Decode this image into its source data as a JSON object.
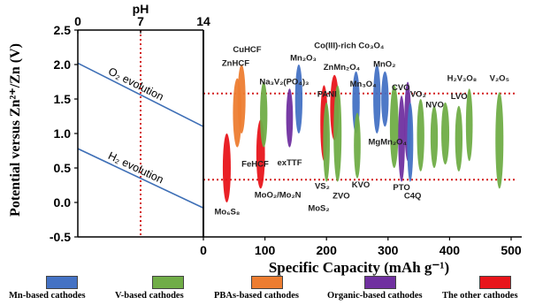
{
  "chart_data": {
    "type": "scatter",
    "title": "",
    "ylabel": "Potential versus Zn²⁺/Zn  (V)",
    "xlabel": "Specific Capacity (mAh g⁻¹)",
    "top_axis_label": "pH",
    "ylim": [
      -0.5,
      2.5
    ],
    "yticks": [
      "2.5",
      "2.0",
      "1.5",
      "1.0",
      "0.5",
      "0.0",
      "-0.5"
    ],
    "ph_range": [
      0,
      14
    ],
    "ph_ticks": [
      "0",
      "7",
      "14"
    ],
    "ph_marker": 7,
    "capacity_range": [
      0,
      500
    ],
    "capacity_ticks": [
      "0",
      "100",
      "200",
      "300",
      "400",
      "500"
    ],
    "reference_lines": [
      1.58,
      0.33
    ],
    "evolution_lines": [
      {
        "label": "O₂ evolution",
        "v_ph0": 2.02,
        "v_ph14": 1.1
      },
      {
        "label": "H₂ evolution",
        "v_ph0": 0.78,
        "v_ph14": -0.08
      }
    ],
    "categories": [
      {
        "key": "mn",
        "label": "Mn-based cathodes",
        "color": "#4472C4"
      },
      {
        "key": "v",
        "label": "V-based cathodes",
        "color": "#70AD47"
      },
      {
        "key": "pba",
        "label": "PBAs-based cathodes",
        "color": "#ED7D31"
      },
      {
        "key": "org",
        "label": "Organic-based cathodes",
        "color": "#7030A0"
      },
      {
        "key": "other",
        "label": "The other cathodes",
        "color": "#E8151B"
      }
    ],
    "regions": [
      {
        "cat": "other",
        "cap": 38,
        "capw": 13,
        "vmin": 0.0,
        "vmax": 1.0
      },
      {
        "cat": "pba",
        "cap": 55,
        "capw": 14,
        "vmin": 0.8,
        "vmax": 1.8
      },
      {
        "cat": "pba",
        "cap": 62,
        "capw": 13,
        "vmin": 1.0,
        "vmax": 2.0
      },
      {
        "cat": "other",
        "cap": 93,
        "capw": 14,
        "vmin": 0.2,
        "vmax": 1.2
      },
      {
        "cat": "v",
        "cap": 98,
        "capw": 12,
        "vmin": 0.8,
        "vmax": 1.75
      },
      {
        "cat": "org",
        "cap": 140,
        "capw": 11,
        "vmin": 0.8,
        "vmax": 1.65
      },
      {
        "cat": "mn",
        "cap": 155,
        "capw": 12,
        "vmin": 1.0,
        "vmax": 2.0
      },
      {
        "cat": "other",
        "cap": 196,
        "capw": 12,
        "vmin": 0.6,
        "vmax": 1.7
      },
      {
        "cat": "v",
        "cap": 200,
        "capw": 11,
        "vmin": 0.3,
        "vmax": 1.45
      },
      {
        "cat": "other",
        "cap": 213,
        "capw": 14,
        "vmin": 0.9,
        "vmax": 1.85
      },
      {
        "cat": "v",
        "cap": 218,
        "capw": 13,
        "vmin": 0.3,
        "vmax": 1.7
      },
      {
        "cat": "mn",
        "cap": 248,
        "capw": 12,
        "vmin": 1.0,
        "vmax": 1.9
      },
      {
        "cat": "v",
        "cap": 250,
        "capw": 11,
        "vmin": 0.35,
        "vmax": 1.3
      },
      {
        "cat": "mn",
        "cap": 282,
        "capw": 12,
        "vmin": 1.0,
        "vmax": 2.0
      },
      {
        "cat": "mn",
        "cap": 295,
        "capw": 12,
        "vmin": 1.1,
        "vmax": 1.9
      },
      {
        "cat": "v",
        "cap": 310,
        "capw": 14,
        "vmin": 0.5,
        "vmax": 1.7
      },
      {
        "cat": "org",
        "cap": 322,
        "capw": 11,
        "vmin": 0.3,
        "vmax": 1.55
      },
      {
        "cat": "org",
        "cap": 332,
        "capw": 11,
        "vmin": 0.6,
        "vmax": 1.75
      },
      {
        "cat": "mn",
        "cap": 336,
        "capw": 10,
        "vmin": 0.3,
        "vmax": 1.45
      },
      {
        "cat": "v",
        "cap": 353,
        "capw": 12,
        "vmin": 0.45,
        "vmax": 1.5
      },
      {
        "cat": "v",
        "cap": 375,
        "capw": 12,
        "vmin": 0.5,
        "vmax": 1.4
      },
      {
        "cat": "v",
        "cap": 393,
        "capw": 13,
        "vmin": 0.55,
        "vmax": 1.45
      },
      {
        "cat": "v",
        "cap": 415,
        "capw": 12,
        "vmin": 0.45,
        "vmax": 1.4
      },
      {
        "cat": "v",
        "cap": 432,
        "capw": 11,
        "vmin": 0.6,
        "vmax": 1.65
      },
      {
        "cat": "v",
        "cap": 481,
        "capw": 13,
        "vmin": 0.2,
        "vmax": 1.6
      }
    ],
    "labels": [
      {
        "text": "CuHCF",
        "cap": 48,
        "v": 2.18
      },
      {
        "text": "ZnHCF",
        "cap": 30,
        "v": 1.98
      },
      {
        "text": "Na₃V₂(PO₄)₃",
        "cap": 91,
        "v": 1.71
      },
      {
        "text": "Mn₂O₃",
        "cap": 141,
        "v": 2.06
      },
      {
        "text": "Co(III)-rich Co₃O₄",
        "cap": 180,
        "v": 2.24
      },
      {
        "text": "ZnMn₂O₄",
        "cap": 195,
        "v": 1.92
      },
      {
        "text": "PANI",
        "cap": 185,
        "v": 1.53
      },
      {
        "text": "Mn₃O₄",
        "cap": 238,
        "v": 1.68
      },
      {
        "text": "MnO₂",
        "cap": 276,
        "v": 1.97
      },
      {
        "text": "CVO",
        "cap": 306,
        "v": 1.63
      },
      {
        "text": "VO₂",
        "cap": 336,
        "v": 1.53
      },
      {
        "text": "NVO",
        "cap": 361,
        "v": 1.38
      },
      {
        "text": "LVO",
        "cap": 402,
        "v": 1.5
      },
      {
        "text": "H₂V₃O₈",
        "cap": 396,
        "v": 1.76
      },
      {
        "text": "V₂O₅",
        "cap": 465,
        "v": 1.76
      },
      {
        "text": "FeHCF",
        "cap": 62,
        "v": 0.52
      },
      {
        "text": "exTTF",
        "cap": 120,
        "v": 0.54
      },
      {
        "text": "MgMn₂O₄",
        "cap": 268,
        "v": 0.84
      },
      {
        "text": "MoO₂/Mo₂N",
        "cap": 83,
        "v": 0.07
      },
      {
        "text": "Mo₆S₈",
        "cap": 18,
        "v": -0.17
      },
      {
        "text": "VS₂",
        "cap": 181,
        "v": 0.2
      },
      {
        "text": "ZVO",
        "cap": 210,
        "v": 0.06
      },
      {
        "text": "MoS₂",
        "cap": 170,
        "v": -0.12
      },
      {
        "text": "KVO",
        "cap": 241,
        "v": 0.22
      },
      {
        "text": "PTO",
        "cap": 308,
        "v": 0.18
      },
      {
        "text": "C4Q",
        "cap": 326,
        "v": 0.06
      }
    ]
  }
}
